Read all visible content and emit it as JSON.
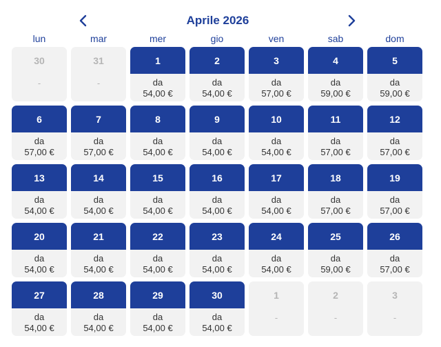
{
  "calendar": {
    "month_title": "Aprile 2026",
    "weekdays": [
      "lun",
      "mar",
      "mer",
      "gio",
      "ven",
      "sab",
      "dom"
    ],
    "accent_color": "#1e3f9a",
    "weeks": [
      [
        {
          "day": "30",
          "active": false,
          "label": "",
          "price": "-"
        },
        {
          "day": "31",
          "active": false,
          "label": "",
          "price": "-"
        },
        {
          "day": "1",
          "active": true,
          "label": "da",
          "price": "54,00 €"
        },
        {
          "day": "2",
          "active": true,
          "label": "da",
          "price": "54,00 €"
        },
        {
          "day": "3",
          "active": true,
          "label": "da",
          "price": "57,00 €"
        },
        {
          "day": "4",
          "active": true,
          "label": "da",
          "price": "59,00 €"
        },
        {
          "day": "5",
          "active": true,
          "label": "da",
          "price": "59,00 €"
        }
      ],
      [
        {
          "day": "6",
          "active": true,
          "label": "da",
          "price": "57,00 €"
        },
        {
          "day": "7",
          "active": true,
          "label": "da",
          "price": "57,00 €"
        },
        {
          "day": "8",
          "active": true,
          "label": "da",
          "price": "54,00 €"
        },
        {
          "day": "9",
          "active": true,
          "label": "da",
          "price": "54,00 €"
        },
        {
          "day": "10",
          "active": true,
          "label": "da",
          "price": "54,00 €"
        },
        {
          "day": "11",
          "active": true,
          "label": "da",
          "price": "57,00 €"
        },
        {
          "day": "12",
          "active": true,
          "label": "da",
          "price": "57,00 €"
        }
      ],
      [
        {
          "day": "13",
          "active": true,
          "label": "da",
          "price": "54,00 €"
        },
        {
          "day": "14",
          "active": true,
          "label": "da",
          "price": "54,00 €"
        },
        {
          "day": "15",
          "active": true,
          "label": "da",
          "price": "54,00 €"
        },
        {
          "day": "16",
          "active": true,
          "label": "da",
          "price": "54,00 €"
        },
        {
          "day": "17",
          "active": true,
          "label": "da",
          "price": "54,00 €"
        },
        {
          "day": "18",
          "active": true,
          "label": "da",
          "price": "57,00 €"
        },
        {
          "day": "19",
          "active": true,
          "label": "da",
          "price": "57,00 €"
        }
      ],
      [
        {
          "day": "20",
          "active": true,
          "label": "da",
          "price": "54,00 €"
        },
        {
          "day": "21",
          "active": true,
          "label": "da",
          "price": "54,00 €"
        },
        {
          "day": "22",
          "active": true,
          "label": "da",
          "price": "54,00 €"
        },
        {
          "day": "23",
          "active": true,
          "label": "da",
          "price": "54,00 €"
        },
        {
          "day": "24",
          "active": true,
          "label": "da",
          "price": "54,00 €"
        },
        {
          "day": "25",
          "active": true,
          "label": "da",
          "price": "59,00 €"
        },
        {
          "day": "26",
          "active": true,
          "label": "da",
          "price": "57,00 €"
        }
      ],
      [
        {
          "day": "27",
          "active": true,
          "label": "da",
          "price": "54,00 €"
        },
        {
          "day": "28",
          "active": true,
          "label": "da",
          "price": "54,00 €"
        },
        {
          "day": "29",
          "active": true,
          "label": "da",
          "price": "54,00 €"
        },
        {
          "day": "30",
          "active": true,
          "label": "da",
          "price": "54,00 €"
        },
        {
          "day": "1",
          "active": false,
          "label": "",
          "price": "-"
        },
        {
          "day": "2",
          "active": false,
          "label": "",
          "price": "-"
        },
        {
          "day": "3",
          "active": false,
          "label": "",
          "price": "-"
        }
      ]
    ]
  }
}
